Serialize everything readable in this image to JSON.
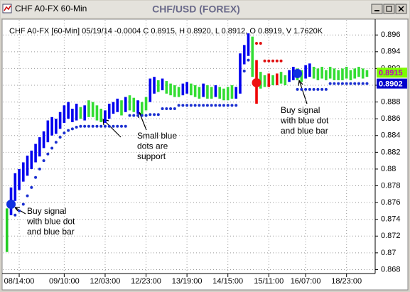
{
  "window": {
    "title": "CHF A0-FX 60-Min"
  },
  "chart_data": {
    "type": "ohlc",
    "title": "CHF/USD (FOREX)",
    "info": "CHF A0-FX [60-Min] 05/19/14  -0.0004 C 0.8915, H 0.8920, L 0.8912, O 0.8919, V 1.7620K",
    "ylim": [
      0.8677,
      0.8978
    ],
    "yticks": [
      0.868,
      0.87,
      0.872,
      0.874,
      0.876,
      0.878,
      0.88,
      0.882,
      0.884,
      0.886,
      0.888,
      0.89,
      0.892,
      0.894,
      0.896
    ],
    "xlim": [
      -1,
      90
    ],
    "xticks": [
      {
        "value": 3,
        "label": "08/14:00"
      },
      {
        "value": 14,
        "label": "09/10:00"
      },
      {
        "value": 24,
        "label": "12/03:00"
      },
      {
        "value": 34,
        "label": "12/23:00"
      },
      {
        "value": 44,
        "label": "13/19:00"
      },
      {
        "value": 54,
        "label": "14/15:00"
      },
      {
        "value": 64,
        "label": "15/11:00"
      },
      {
        "value": 73,
        "label": "16/07:00"
      },
      {
        "value": 83,
        "label": "18/23:00"
      }
    ],
    "grid": true,
    "bars": {
      "high": [
        0.8753,
        0.8778,
        0.8795,
        0.88,
        0.8808,
        0.8816,
        0.8822,
        0.883,
        0.8838,
        0.8845,
        0.8858,
        0.8862,
        0.886,
        0.8868,
        0.8876,
        0.888,
        0.8872,
        0.8878,
        0.8874,
        0.8876,
        0.8882,
        0.888,
        0.8876,
        0.8872,
        0.887,
        0.8878,
        0.888,
        0.8884,
        0.8882,
        0.8886,
        0.8888,
        0.8885,
        0.8882,
        0.888,
        0.8886,
        0.8908,
        0.891,
        0.8906,
        0.8908,
        0.8905,
        0.8902,
        0.89,
        0.8898,
        0.8902,
        0.8904,
        0.8902,
        0.89,
        0.8898,
        0.8902,
        0.89,
        0.8898,
        0.89,
        0.8898,
        0.8896,
        0.8898,
        0.89,
        0.8898,
        0.8938,
        0.8948,
        0.8962,
        0.8958,
        0.893,
        0.8916,
        0.8912,
        0.8914,
        0.8912,
        0.8914,
        0.8916,
        0.8912,
        0.8918,
        0.8922,
        0.892,
        0.8918,
        0.8924,
        0.8926,
        0.8922,
        0.892,
        0.8922,
        0.8918,
        0.8922,
        0.892,
        0.8918,
        0.892,
        0.8922,
        0.8918,
        0.892,
        0.8922,
        0.892,
        0.8918
      ],
      "low": [
        0.8701,
        0.8745,
        0.8762,
        0.8775,
        0.8785,
        0.8792,
        0.88,
        0.8808,
        0.8815,
        0.8825,
        0.8832,
        0.884,
        0.8842,
        0.8848,
        0.8855,
        0.886,
        0.8856,
        0.8858,
        0.886,
        0.8858,
        0.8862,
        0.8862,
        0.8858,
        0.8856,
        0.8855,
        0.886,
        0.8866,
        0.8868,
        0.8864,
        0.8868,
        0.887,
        0.8868,
        0.8866,
        0.8864,
        0.887,
        0.888,
        0.889,
        0.8892,
        0.8894,
        0.889,
        0.8888,
        0.8886,
        0.8886,
        0.8888,
        0.889,
        0.8888,
        0.8886,
        0.8884,
        0.8886,
        0.8884,
        0.8884,
        0.8886,
        0.8884,
        0.8882,
        0.8882,
        0.8884,
        0.8884,
        0.889,
        0.8925,
        0.8935,
        0.891,
        0.8878,
        0.8896,
        0.8898,
        0.8898,
        0.89,
        0.89,
        0.8902,
        0.89,
        0.8904,
        0.8906,
        0.8906,
        0.8904,
        0.8908,
        0.891,
        0.8908,
        0.8906,
        0.8908,
        0.8906,
        0.8908,
        0.8906,
        0.8906,
        0.8906,
        0.8908,
        0.8906,
        0.8908,
        0.891,
        0.8908,
        0.891
      ],
      "colors": [
        "#22cc22",
        "#0000ee",
        "#0000ee",
        "#0000ee",
        "#0000ee",
        "#0000ee",
        "#0000ee",
        "#0000ee",
        "#0000ee",
        "#0000ee",
        "#0000ee",
        "#0000ee",
        "#0000ee",
        "#0000ee",
        "#0000ee",
        "#0000ee",
        "#0000ee",
        "#0000ee",
        "#33dd33",
        "#0000ee",
        "#33dd33",
        "#33dd33",
        "#33dd33",
        "#33dd33",
        "#0000ee",
        "#0000ee",
        "#0000ee",
        "#0000ee",
        "#33dd33",
        "#0000ee",
        "#33dd33",
        "#33dd33",
        "#0000ee",
        "#33dd33",
        "#33dd33",
        "#0000ee",
        "#0000ee",
        "#33dd33",
        "#0000ee",
        "#33dd33",
        "#33dd33",
        "#33dd33",
        "#33dd33",
        "#0000ee",
        "#0000ee",
        "#33dd33",
        "#33dd33",
        "#33dd33",
        "#0000ee",
        "#33dd33",
        "#33dd33",
        "#0000ee",
        "#33dd33",
        "#33dd33",
        "#33dd33",
        "#33dd33",
        "#0000ee",
        "#0000ee",
        "#0000ee",
        "#0000ee",
        "#33dd33",
        "#ee0000",
        "#33dd33",
        "#33dd33",
        "#ee0000",
        "#33dd33",
        "#ee0000",
        "#33dd33",
        "#33dd33",
        "#0000ee",
        "#0000ee",
        "#33dd33",
        "#33dd33",
        "#0000ee",
        "#0000ee",
        "#33dd33",
        "#33dd33",
        "#33dd33",
        "#33dd33",
        "#33dd33",
        "#33dd33",
        "#33dd33",
        "#33dd33",
        "#33dd33",
        "#33dd33",
        "#33dd33",
        "#33dd33",
        "#33dd33",
        "#33dd33"
      ]
    },
    "dots": [
      {
        "color": "#1a2fd0",
        "x": [
          2,
          3,
          4,
          5,
          6,
          7,
          8,
          9,
          10,
          11,
          12,
          13,
          14,
          15,
          16,
          17,
          18,
          19,
          20,
          21,
          22,
          23,
          24,
          25,
          26,
          27,
          28,
          29,
          30,
          31,
          32,
          33,
          34,
          35,
          36,
          37,
          38,
          39,
          40,
          41,
          42,
          43,
          44,
          45,
          46,
          47,
          48,
          49,
          50,
          51,
          52,
          53,
          54,
          55,
          56,
          58,
          59,
          71,
          72,
          73,
          74,
          75,
          76,
          77,
          78,
          79,
          80,
          81,
          82,
          83,
          84,
          85,
          86,
          87,
          88
        ],
        "y": [
          0.8745,
          0.875,
          0.8758,
          0.8768,
          0.8778,
          0.879,
          0.88,
          0.881,
          0.8818,
          0.8825,
          0.8832,
          0.8838,
          0.8843,
          0.8846,
          0.8848,
          0.885,
          0.8851,
          0.8851,
          0.8851,
          0.8851,
          0.8851,
          0.8851,
          0.8851,
          0.8851,
          0.8851,
          0.8851,
          0.8851,
          0.8851,
          0.8864,
          0.8864,
          0.8864,
          0.8864,
          0.8864,
          0.8865,
          0.8865,
          0.8865,
          0.8872,
          0.8872,
          0.8872,
          0.8872,
          0.8876,
          0.8876,
          0.8876,
          0.8876,
          0.8876,
          0.8876,
          0.8876,
          0.8876,
          0.8876,
          0.8876,
          0.8876,
          0.8876,
          0.8876,
          0.8876,
          0.8876,
          0.8917,
          0.893,
          0.8895,
          0.8895,
          0.8895,
          0.8895,
          0.8895,
          0.8895,
          0.8895,
          0.8895,
          0.8902,
          0.8902,
          0.8902,
          0.8902,
          0.8902,
          0.8902,
          0.8902,
          0.8902,
          0.8902,
          0.8902
        ]
      },
      {
        "color": "#e01010",
        "x": [
          61,
          62,
          63,
          64,
          65,
          66,
          67
        ],
        "y": [
          0.895,
          0.895,
          0.8929,
          0.8929,
          0.8929,
          0.8929,
          0.8929
        ]
      }
    ],
    "signals": {
      "x": [
        1,
        61,
        71
      ],
      "y": [
        0.8758,
        0.8903,
        0.8914
      ],
      "colors": [
        "#1030e0",
        "#ee1111",
        "#1030e0"
      ]
    },
    "price_labels": [
      {
        "value": 0.8915,
        "color": "#7cfc00"
      },
      {
        "value": 0.8902,
        "color": "#0000cc"
      }
    ],
    "annotations": [
      {
        "lines": [
          "Buy signal",
          "with blue dot",
          "and blue bar"
        ]
      },
      {
        "lines": [
          "Small blue",
          "dots are",
          "support"
        ]
      },
      {
        "lines": [
          "Buy signal",
          "with blue dot",
          "and blue bar"
        ]
      }
    ]
  }
}
